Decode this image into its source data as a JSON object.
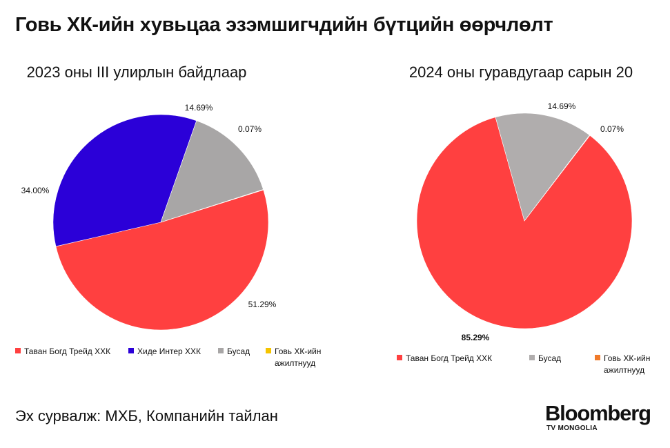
{
  "title": "Говь ХК-ийн хувьцаа эзэмшигчдийн бүтцийн өөрчлөлт",
  "source": "Эх сурвалж: МХБ, Компанийн тайлан",
  "logo": {
    "name": "Bloomberg",
    "sub": "TV MONGOLIA"
  },
  "chart_data": [
    {
      "type": "pie",
      "title": "2023 оны III улирлын байдлаар",
      "slices": [
        {
          "label": "Таван Богд Трейд ХХК",
          "value": 51.29,
          "value_label": "51.29%",
          "color": "#ff4040"
        },
        {
          "label": "Хиде Интер ХХК",
          "value": 34.0,
          "value_label": "34.00%",
          "color": "#2b00d8"
        },
        {
          "label": "Бусад",
          "value": 14.69,
          "value_label": "14.69%",
          "color": "#a8a6a6"
        },
        {
          "label": "Говь ХК-ийн ажилтнууд",
          "value": 0.07,
          "value_label": "0.07%",
          "color": "#f5c400"
        }
      ],
      "legend": "bottom"
    },
    {
      "type": "pie",
      "title": "2024 оны гуравдугаар сарын 20",
      "slices": [
        {
          "label": "Таван Богд Трейд ХХК",
          "value": 85.29,
          "value_label": "85.29%",
          "color": "#ff4040"
        },
        {
          "label": "Бусад",
          "value": 14.69,
          "value_label": "14.69%",
          "color": "#b0adad"
        },
        {
          "label": "Говь ХК-ийн ажилтнууд",
          "value": 0.07,
          "value_label": "0.07%",
          "color": "#f07a2a"
        }
      ],
      "legend": "bottom"
    }
  ]
}
